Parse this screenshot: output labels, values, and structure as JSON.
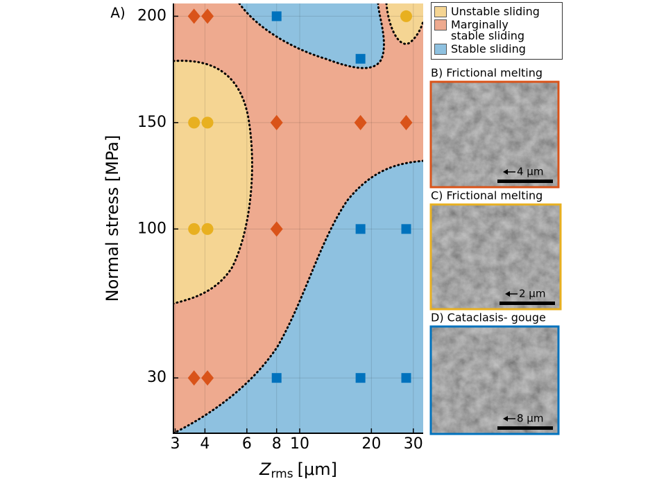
{
  "panel_label": "A)",
  "chart_data": {
    "type": "scatter",
    "ylabel": "Normal stress [MPa]",
    "xlabel": "Z",
    "xlabel_sub": "rms",
    "xlabel_unit": "[μm]",
    "xscale": "log",
    "xlim": [
      2.95,
      33
    ],
    "ylim": [
      4,
      206
    ],
    "xticks": [
      3,
      4,
      6,
      8,
      10,
      20,
      30
    ],
    "yticks": [
      30,
      100,
      150,
      200
    ],
    "grid": true,
    "series": [
      {
        "name": "Unstable sliding",
        "marker": "circle",
        "color": "#e8b020",
        "region_color": "#f5d593",
        "x": [
          3.6,
          4.1,
          3.6,
          4.1,
          28
        ],
        "values": [
          150,
          150,
          100,
          100,
          200
        ]
      },
      {
        "name": "Marginally stable sliding",
        "marker": "diamond",
        "color": "#d95319",
        "region_color": "#eeaa8f",
        "x": [
          3.6,
          4.1,
          8,
          18,
          28,
          8,
          3.6,
          4.1
        ],
        "values": [
          200,
          200,
          150,
          150,
          150,
          100,
          30,
          30
        ]
      },
      {
        "name": "Stable sliding",
        "marker": "square",
        "color": "#0072bd",
        "region_color": "#8ec1e0",
        "x": [
          8,
          18,
          18,
          28,
          8,
          18,
          28
        ],
        "values": [
          200,
          180,
          100,
          100,
          30,
          30,
          30
        ]
      }
    ]
  },
  "panels": [
    {
      "label": "B) Frictional melting",
      "scale": "4 μm",
      "color": "#d95319"
    },
    {
      "label": "C) Frictional melting",
      "scale": "2 μm",
      "color": "#e8b020"
    },
    {
      "label": "D) Cataclasis- gouge",
      "scale": "8 μm",
      "color": "#0072bd"
    }
  ]
}
